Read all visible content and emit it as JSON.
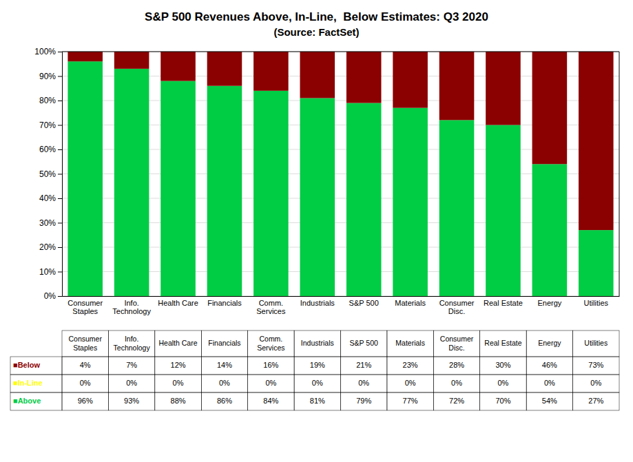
{
  "chart_data": {
    "type": "bar",
    "title": "S&P 500 Revenues Above, In-Line,  Below Estimates: Q3 2020",
    "subtitle": "(Source: FactSet)",
    "categories": [
      "Consumer\nStaples",
      "Info.\nTechnology",
      "Health Care",
      "Financials",
      "Comm.\nServices",
      "Industrials",
      "S&P 500",
      "Materials",
      "Consumer\nDisc.",
      "Real Estate",
      "Energy",
      "Utilities"
    ],
    "series": [
      {
        "name": "■Above",
        "color": "#00CC44",
        "values": [
          96,
          93,
          88,
          86,
          84,
          81,
          79,
          77,
          72,
          70,
          54,
          27
        ],
        "value_labels": [
          "96%",
          "93%",
          "88%",
          "86%",
          "84%",
          "81%",
          "79%",
          "77%",
          "72%",
          "70%",
          "54%",
          "27%"
        ]
      },
      {
        "name": "■In-Line",
        "color": "#FFFF00",
        "values": [
          0,
          0,
          0,
          0,
          0,
          0,
          0,
          0,
          0,
          0,
          0,
          0
        ],
        "value_labels": [
          "0%",
          "0%",
          "0%",
          "0%",
          "0%",
          "0%",
          "0%",
          "0%",
          "0%",
          "0%",
          "0%",
          "0%"
        ]
      },
      {
        "name": "■Below",
        "color": "#8B0000",
        "values": [
          4,
          7,
          12,
          14,
          16,
          19,
          21,
          23,
          28,
          30,
          46,
          73
        ],
        "value_labels": [
          "4%",
          "7%",
          "12%",
          "14%",
          "16%",
          "19%",
          "21%",
          "23%",
          "28%",
          "30%",
          "46%",
          "73%"
        ]
      }
    ],
    "stacked": true,
    "ylim": [
      0,
      100
    ],
    "yticks": [
      {
        "value": 0,
        "label": "0%"
      },
      {
        "value": 10,
        "label": "10%"
      },
      {
        "value": 20,
        "label": "20%"
      },
      {
        "value": 30,
        "label": "30%"
      },
      {
        "value": 40,
        "label": "40%"
      },
      {
        "value": 50,
        "label": "50%"
      },
      {
        "value": 60,
        "label": "60%"
      },
      {
        "value": 70,
        "label": "70%"
      },
      {
        "value": 80,
        "label": "80%"
      },
      {
        "value": 90,
        "label": "90%"
      },
      {
        "value": 100,
        "label": "100%"
      }
    ],
    "grid": true
  }
}
